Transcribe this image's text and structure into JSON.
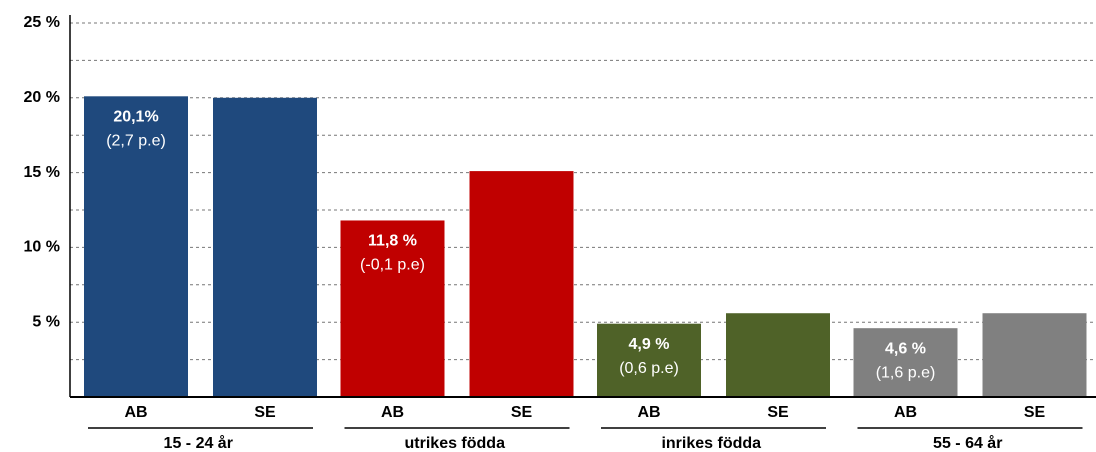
{
  "chart_data": {
    "type": "bar",
    "categories": [
      "15 - 24 år",
      "utrikes födda",
      "inrikes födda",
      "55 - 64 år"
    ],
    "colors": [
      "#1f497d",
      "#c00000",
      "#4f6228",
      "#808080"
    ],
    "series": [
      {
        "name": "AB",
        "values": [
          20.1,
          11.8,
          4.9,
          4.6
        ],
        "value_labels": [
          "20,1%",
          "11,8 %",
          "4,9 %",
          "4,6 %"
        ],
        "change_labels": [
          "(2,7 p.e)",
          "(-0,1 p.e)",
          "(0,6 p.e)",
          "(1,6 p.e)"
        ]
      },
      {
        "name": "SE",
        "values": [
          20.0,
          15.1,
          5.6,
          5.6
        ]
      }
    ],
    "ylim": [
      0,
      25
    ],
    "yticks": [
      {
        "value": 5,
        "label": "5 %"
      },
      {
        "value": 10,
        "label": "10 %"
      },
      {
        "value": 15,
        "label": "15 %"
      },
      {
        "value": 20,
        "label": "20 %"
      },
      {
        "value": 25,
        "label": "25 %"
      }
    ],
    "minor_grid": [
      2.5,
      7.5,
      12.5,
      17.5,
      22.5
    ],
    "grid": true
  }
}
